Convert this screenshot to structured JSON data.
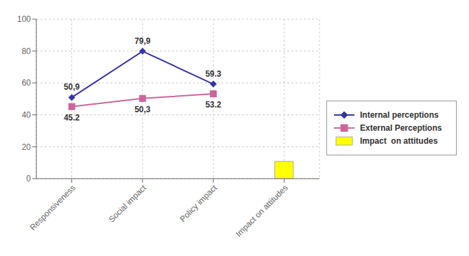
{
  "chart_data": {
    "type": "line",
    "categories": [
      "Responsiveness",
      "Social impact",
      "Policy impact",
      "Impact on attitudes"
    ],
    "series": [
      {
        "name": "Internal perceptions",
        "type": "line",
        "color": "#3333AA",
        "marker": "diamond",
        "values": [
          50.9,
          79.9,
          59.3,
          null
        ],
        "value_labels": [
          "50,9",
          "79,9",
          "59.3",
          null
        ]
      },
      {
        "name": "External Perceptions",
        "type": "line",
        "color": "#CC6699",
        "marker": "square",
        "values": [
          45.2,
          50.3,
          53.2,
          null
        ],
        "value_labels": [
          "45.2",
          "50,3",
          "53.2",
          null
        ]
      },
      {
        "name": "Impact  on attitudes",
        "type": "bar",
        "color": "#FFFF00",
        "values": [
          null,
          null,
          null,
          10.8
        ]
      }
    ],
    "ylim": [
      0,
      100
    ],
    "yticks": [
      0,
      20,
      40,
      60,
      80,
      100
    ],
    "grid": true,
    "legend": "right",
    "data_labels": true
  }
}
